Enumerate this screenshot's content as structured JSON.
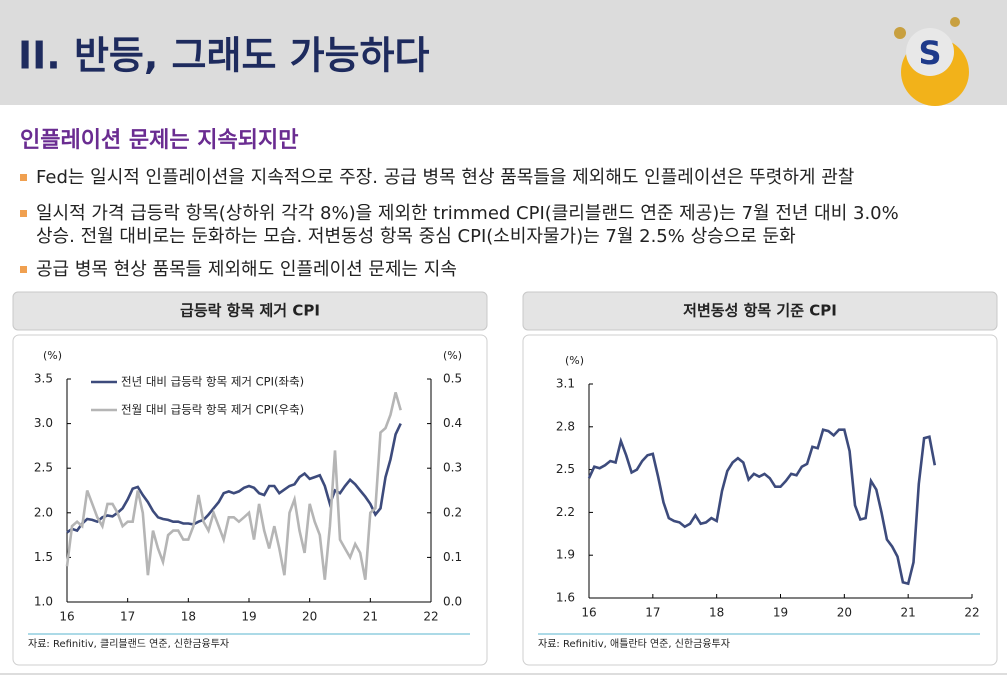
{
  "header": {
    "title": "II. 반등, 그래도 가능하다"
  },
  "subtitle": "인플레이션 문제는 지속되지만",
  "bullets": [
    "Fed는 일시적 인플레이션을 지속적으로 주장. 공급 병목 현상 품목들을 제외해도 인플레이션은 뚜렷하게 관찰",
    "일시적 가격 급등락 항목(상하위 각각 8%)을 제외한 trimmed CPI(클리블랜드 연준 제공)는 7월 전년 대비 3.0% 상승. 전월 대비로는 둔화하는 모습. 저변동성 항목 중심 CPI(소비자물가)는 7월 2.5% 상승으로 둔화",
    "공급 병목 현상 품목들 제외해도 인플레이션 문제는 지속"
  ],
  "chart_data": [
    {
      "type": "line",
      "title": "급등락 항목 제거 CPI",
      "y_unit": "(%)",
      "y2_unit": "(%)",
      "source": "자료: Refinitiv, 클리블랜드 연준, 신한금융투자",
      "x": [
        16,
        16.083,
        16.167,
        16.25,
        16.333,
        16.417,
        16.5,
        16.583,
        16.667,
        16.75,
        16.833,
        16.917,
        17,
        17.083,
        17.167,
        17.25,
        17.333,
        17.417,
        17.5,
        17.583,
        17.667,
        17.75,
        17.833,
        17.917,
        18,
        18.083,
        18.167,
        18.25,
        18.333,
        18.417,
        18.5,
        18.583,
        18.667,
        18.75,
        18.833,
        18.917,
        19,
        19.083,
        19.167,
        19.25,
        19.333,
        19.417,
        19.5,
        19.583,
        19.667,
        19.75,
        19.833,
        19.917,
        20,
        20.083,
        20.167,
        20.25,
        20.333,
        20.417,
        20.5,
        20.583,
        20.667,
        20.75,
        20.833,
        20.917,
        21,
        21.083,
        21.167,
        21.25,
        21.333,
        21.417,
        21.5
      ],
      "series": [
        {
          "name": "전년 대비 급등락 항목 제거 CPI(좌축)",
          "color": "#3d4b7c",
          "values": [
            1.78,
            1.82,
            1.8,
            1.88,
            1.93,
            1.92,
            1.9,
            1.95,
            1.97,
            1.96,
            2.0,
            2.05,
            2.15,
            2.27,
            2.29,
            2.2,
            2.12,
            2.02,
            1.95,
            1.93,
            1.92,
            1.9,
            1.9,
            1.88,
            1.88,
            1.87,
            1.9,
            1.92,
            1.98,
            2.05,
            2.12,
            2.22,
            2.24,
            2.22,
            2.24,
            2.28,
            2.3,
            2.28,
            2.22,
            2.2,
            2.3,
            2.3,
            2.22,
            2.26,
            2.3,
            2.32,
            2.4,
            2.44,
            2.38,
            2.4,
            2.42,
            2.3,
            2.1,
            2.25,
            2.22,
            2.3,
            2.37,
            2.32,
            2.25,
            2.18,
            2.1,
            1.98,
            2.05,
            2.4,
            2.6,
            2.88,
            3.0
          ]
        },
        {
          "name": "전월 대비 급등락 항목 제거 CPI(우축)",
          "color": "#b5b5b5",
          "axis": "y2",
          "values": [
            0.08,
            0.17,
            0.18,
            0.17,
            0.25,
            0.22,
            0.19,
            0.17,
            0.22,
            0.22,
            0.2,
            0.17,
            0.18,
            0.18,
            0.25,
            0.2,
            0.06,
            0.16,
            0.12,
            0.09,
            0.15,
            0.16,
            0.16,
            0.14,
            0.14,
            0.17,
            0.24,
            0.18,
            0.16,
            0.2,
            0.17,
            0.14,
            0.19,
            0.19,
            0.18,
            0.19,
            0.2,
            0.14,
            0.22,
            0.16,
            0.12,
            0.17,
            0.12,
            0.06,
            0.2,
            0.23,
            0.16,
            0.11,
            0.22,
            0.18,
            0.15,
            0.05,
            0.17,
            0.34,
            0.14,
            0.12,
            0.1,
            0.13,
            0.11,
            0.05,
            0.2,
            0.21,
            0.38,
            0.39,
            0.42,
            0.47,
            0.43
          ]
        }
      ],
      "xlim": [
        16,
        22
      ],
      "xticks": [
        16,
        17,
        18,
        19,
        20,
        21,
        22
      ],
      "ylim": [
        1,
        3.5
      ],
      "yticks": [
        {
          "value": 1,
          "label": "1.0"
        },
        1.5,
        {
          "value": 2,
          "label": "2.0"
        },
        2.5,
        {
          "value": 3,
          "label": "3.0"
        },
        3.5
      ],
      "y2lim": [
        0,
        0.5
      ],
      "y2ticks": [
        {
          "value": 0,
          "label": "0.0"
        },
        0.1,
        0.2,
        0.3,
        0.4,
        0.5
      ]
    },
    {
      "type": "line",
      "title": "저변동성 항목 기준 CPI",
      "y_unit": "(%)",
      "source": "자료: Refinitiv, 애틀란타 연준, 신한금융투자",
      "x": [
        16,
        16.083,
        16.167,
        16.25,
        16.333,
        16.417,
        16.5,
        16.583,
        16.667,
        16.75,
        16.833,
        16.917,
        17,
        17.083,
        17.167,
        17.25,
        17.333,
        17.417,
        17.5,
        17.583,
        17.667,
        17.75,
        17.833,
        17.917,
        18,
        18.083,
        18.167,
        18.25,
        18.333,
        18.417,
        18.5,
        18.583,
        18.667,
        18.75,
        18.833,
        18.917,
        19,
        19.083,
        19.167,
        19.25,
        19.333,
        19.417,
        19.5,
        19.583,
        19.667,
        19.75,
        19.833,
        19.917,
        20,
        20.083,
        20.167,
        20.25,
        20.333,
        20.417,
        20.5,
        20.583,
        20.667,
        20.75,
        20.833,
        20.917,
        21,
        21.083,
        21.167,
        21.25,
        21.333,
        21.417
      ],
      "series": [
        {
          "color": "#3d4b7c",
          "values": [
            2.44,
            2.52,
            2.51,
            2.53,
            2.56,
            2.55,
            2.7,
            2.6,
            2.48,
            2.5,
            2.56,
            2.6,
            2.61,
            2.45,
            2.27,
            2.16,
            2.14,
            2.13,
            2.1,
            2.12,
            2.18,
            2.12,
            2.13,
            2.16,
            2.14,
            2.35,
            2.49,
            2.55,
            2.58,
            2.55,
            2.43,
            2.47,
            2.45,
            2.47,
            2.44,
            2.38,
            2.38,
            2.42,
            2.47,
            2.46,
            2.52,
            2.54,
            2.66,
            2.65,
            2.78,
            2.77,
            2.74,
            2.78,
            2.78,
            2.63,
            2.25,
            2.15,
            2.16,
            2.42,
            2.36,
            2.2,
            2.01,
            1.96,
            1.89,
            1.71,
            1.7,
            1.85,
            2.4,
            2.72,
            2.73,
            2.53
          ]
        }
      ],
      "xlim": [
        16,
        22
      ],
      "xticks": [
        16,
        17,
        18,
        19,
        20,
        21,
        22
      ],
      "ylim": [
        1.6,
        3.1
      ],
      "yticks": [
        1.6,
        1.9,
        2.2,
        2.5,
        2.8,
        3.1
      ]
    }
  ]
}
